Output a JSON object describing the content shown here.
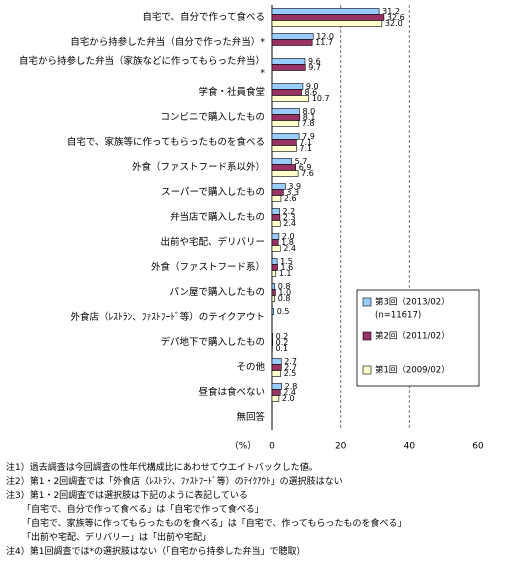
{
  "chart_data": {
    "type": "hbar",
    "categories": [
      "自宅で、自分で作って食べる",
      "自宅から持参した弁当（自分で作った弁当）*",
      "自宅から持参した弁当（家族などに作ってもらった弁当）*",
      "学食・社員食堂",
      "コンビニで購入したもの",
      "自宅で、家族等に作ってもらったものを食べる",
      "外食（ファストフード系以外）",
      "スーパーで購入したもの",
      "弁当店で購入したもの",
      "出前や宅配、デリバリー",
      "外食（ファストフード系）",
      "パン屋で購入したもの",
      "外食店（ﾚｽﾄﾗﾝ、ﾌｧｽﾄﾌｰﾄﾞ等）のテイクアウト",
      "デパ地下で購入したもの",
      "その他",
      "昼食は食べない",
      "無回答"
    ],
    "series": [
      {
        "name": "第3回（2013/02）",
        "note": "(n=11617)",
        "color": "#99ccff",
        "values": [
          31.2,
          12.0,
          9.6,
          9.0,
          8.0,
          7.9,
          5.7,
          3.9,
          2.2,
          2.0,
          1.5,
          0.8,
          0.5,
          0.2,
          2.7,
          2.8,
          null
        ],
        "value_labels": [
          "31.2",
          "12.0",
          "9.6",
          "9.0",
          "8.0",
          "7.9",
          "5.7",
          "3.9",
          "2.2",
          "2.0",
          "1.5",
          "0.8",
          "0.5",
          "0.2",
          "2.7",
          "2.8",
          null
        ]
      },
      {
        "name": "第2回（2011/02）",
        "color": "#993366",
        "values": [
          32.6,
          11.7,
          9.7,
          8.6,
          8.1,
          7.1,
          6.9,
          3.3,
          2.3,
          1.8,
          1.6,
          1.0,
          null,
          0.2,
          2.7,
          2.4,
          null
        ],
        "value_labels": [
          "32.6",
          "11.7",
          "9.7",
          "8.6",
          "8.1",
          "7.1",
          "6.9",
          "3.3",
          "2.3",
          "1.8",
          "1.6",
          "1.0",
          null,
          "0.2",
          "2.7",
          "2.4",
          null
        ]
      },
      {
        "name": "第1回（2009/02）",
        "color": "#ffffcc",
        "values": [
          32.0,
          null,
          null,
          10.7,
          7.8,
          7.1,
          7.6,
          2.6,
          2.4,
          2.4,
          1.1,
          0.8,
          null,
          0.1,
          2.5,
          2.0,
          null
        ],
        "value_labels": [
          "32.0",
          null,
          null,
          "10.7",
          "7.8",
          "7.1",
          "7.6",
          "2.6",
          "2.4",
          "2.4",
          "1.1",
          "0.8",
          null,
          "0.1",
          "2.5",
          "2.0",
          null
        ]
      }
    ],
    "xlim": [
      0,
      60
    ],
    "xticks": [
      0,
      20,
      40,
      60
    ],
    "x_unit": "（%）",
    "grid": true,
    "notes": [
      "注1）過去調査は今回調査の性年代構成比にあわせてウエイトバックした値。",
      "注2）第1・2回調査では「外食店（ﾚｽﾄﾗﾝ、ﾌｧｽﾄﾌｰﾄﾞ等）のﾃｲｸｱｳﾄ」の選択肢はない",
      "注3）第1・2回調査では選択肢は下記のように表記している",
      "「自宅で、自分で作って食べる」は「自宅で作って食べる」",
      "「自宅で、家族等に作ってもらったものを食べる」は「自宅で、作ってもらったものを食べる」",
      "「出前や宅配、デリバリー」は「出前や宅配」",
      "注4）第1回調査では*の選択肢はない（「自宅から持参した弁当」で聴取）"
    ]
  }
}
